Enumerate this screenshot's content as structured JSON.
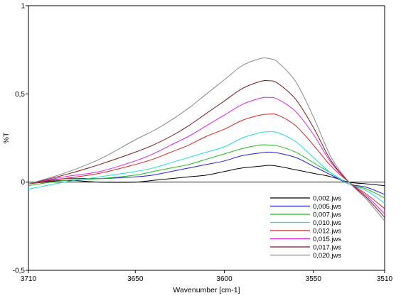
{
  "chart_data": {
    "type": "line",
    "xlabel": "Wavenumber [cm-1]",
    "ylabel": "%T",
    "xlim": [
      3710,
      3510
    ],
    "ylim": [
      -0.5,
      1
    ],
    "x_ticks": [
      3710,
      3650,
      3600,
      3550,
      3510
    ],
    "y_ticks": [
      -0.5,
      0,
      0.5,
      1
    ],
    "x_tick_labels": [
      "3710",
      "3650",
      "3600",
      "3550",
      "3510"
    ],
    "y_tick_labels": [
      "-0,5",
      "0",
      "0,5",
      "1"
    ],
    "zero_line": true,
    "grid": false,
    "legend_position": "bottom-right",
    "series": [
      {
        "name": "0,002.jws",
        "color": "#000000",
        "x": [
          3710,
          3690,
          3670,
          3650,
          3640,
          3630,
          3620,
          3610,
          3600,
          3590,
          3580,
          3575,
          3570,
          3560,
          3550,
          3540,
          3530,
          3520,
          3510
        ],
        "y": [
          -0.01,
          0.01,
          0.0,
          0.0,
          0.01,
          0.02,
          0.03,
          0.04,
          0.06,
          0.08,
          0.09,
          0.095,
          0.09,
          0.07,
          0.05,
          0.03,
          0.0,
          -0.01,
          -0.02
        ]
      },
      {
        "name": "0,005.jws",
        "color": "#1f1fcf",
        "x": [
          3710,
          3690,
          3670,
          3650,
          3640,
          3630,
          3620,
          3610,
          3600,
          3590,
          3580,
          3575,
          3570,
          3560,
          3550,
          3540,
          3530,
          3520,
          3510
        ],
        "y": [
          -0.01,
          0.02,
          0.02,
          0.03,
          0.04,
          0.06,
          0.08,
          0.1,
          0.12,
          0.15,
          0.165,
          0.17,
          0.165,
          0.14,
          0.09,
          0.04,
          -0.01,
          -0.03,
          -0.07
        ]
      },
      {
        "name": "0,007.jws",
        "color": "#22bb22",
        "x": [
          3710,
          3690,
          3670,
          3650,
          3640,
          3630,
          3620,
          3610,
          3600,
          3590,
          3580,
          3575,
          3570,
          3560,
          3550,
          3540,
          3530,
          3520,
          3510
        ],
        "y": [
          -0.02,
          0.01,
          0.02,
          0.04,
          0.06,
          0.08,
          0.1,
          0.13,
          0.16,
          0.19,
          0.21,
          0.21,
          0.205,
          0.17,
          0.11,
          0.05,
          -0.01,
          -0.04,
          -0.09
        ]
      },
      {
        "name": "0,010.jws",
        "color": "#22dddd",
        "x": [
          3710,
          3690,
          3670,
          3650,
          3640,
          3630,
          3620,
          3610,
          3600,
          3590,
          3580,
          3575,
          3570,
          3560,
          3550,
          3540,
          3530,
          3520,
          3510
        ],
        "y": [
          -0.04,
          0.0,
          0.03,
          0.06,
          0.08,
          0.11,
          0.14,
          0.17,
          0.2,
          0.25,
          0.28,
          0.285,
          0.28,
          0.23,
          0.14,
          0.05,
          -0.01,
          -0.05,
          -0.12
        ]
      },
      {
        "name": "0,012.jws",
        "color": "#dd2222",
        "x": [
          3710,
          3690,
          3670,
          3650,
          3640,
          3630,
          3620,
          3610,
          3600,
          3590,
          3580,
          3575,
          3570,
          3560,
          3550,
          3540,
          3530,
          3520,
          3510
        ],
        "y": [
          -0.01,
          0.02,
          0.05,
          0.1,
          0.13,
          0.17,
          0.21,
          0.26,
          0.3,
          0.35,
          0.38,
          0.385,
          0.38,
          0.32,
          0.21,
          0.09,
          0.0,
          -0.07,
          -0.15
        ]
      },
      {
        "name": "0,015.jws",
        "color": "#dd22dd",
        "x": [
          3710,
          3690,
          3670,
          3650,
          3640,
          3630,
          3620,
          3610,
          3600,
          3590,
          3580,
          3575,
          3570,
          3560,
          3550,
          3540,
          3530,
          3520,
          3510
        ],
        "y": [
          -0.01,
          0.03,
          0.06,
          0.12,
          0.16,
          0.21,
          0.26,
          0.32,
          0.38,
          0.44,
          0.475,
          0.48,
          0.47,
          0.4,
          0.27,
          0.11,
          0.0,
          -0.08,
          -0.18
        ]
      },
      {
        "name": "0,017.jws",
        "color": "#7a1a1a",
        "x": [
          3710,
          3690,
          3670,
          3650,
          3640,
          3630,
          3620,
          3610,
          3600,
          3590,
          3580,
          3575,
          3570,
          3560,
          3550,
          3540,
          3530,
          3520,
          3510
        ],
        "y": [
          -0.01,
          0.04,
          0.1,
          0.17,
          0.21,
          0.26,
          0.32,
          0.39,
          0.46,
          0.53,
          0.57,
          0.575,
          0.56,
          0.47,
          0.31,
          0.12,
          0.0,
          -0.09,
          -0.2
        ]
      },
      {
        "name": "0,020.jws",
        "color": "#888888",
        "x": [
          3710,
          3690,
          3670,
          3650,
          3640,
          3630,
          3620,
          3610,
          3600,
          3590,
          3580,
          3575,
          3570,
          3560,
          3550,
          3540,
          3530,
          3520,
          3510
        ],
        "y": [
          -0.01,
          0.05,
          0.13,
          0.24,
          0.29,
          0.35,
          0.42,
          0.5,
          0.58,
          0.66,
          0.7,
          0.7,
          0.68,
          0.57,
          0.37,
          0.14,
          0.0,
          -0.1,
          -0.22
        ]
      }
    ]
  }
}
